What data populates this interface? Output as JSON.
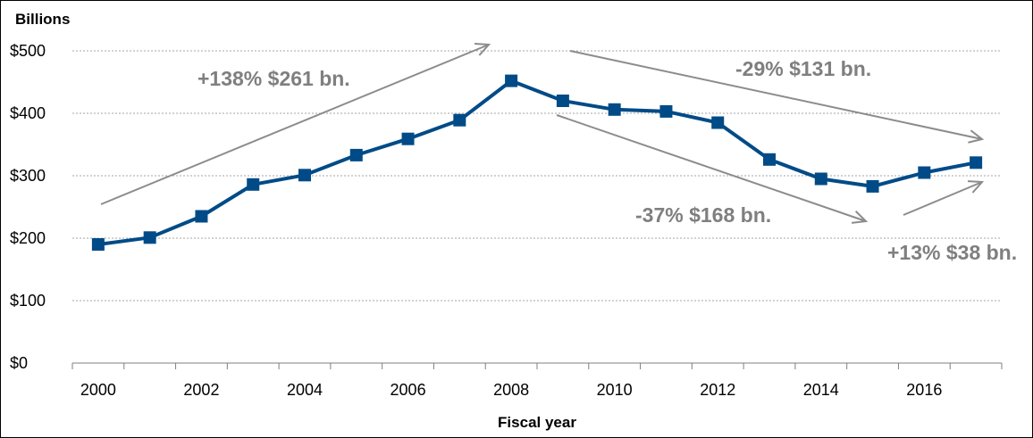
{
  "chart_data": {
    "type": "line",
    "title": "",
    "ylabel": "Billions",
    "xlabel": "Fiscal year",
    "ylim": [
      0,
      500
    ],
    "grid": true,
    "y_ticks": [
      0,
      100,
      200,
      300,
      400,
      500
    ],
    "y_tick_labels": [
      "$0",
      "$100",
      "$200",
      "$300",
      "$400",
      "$500"
    ],
    "x_tick_labels": [
      "2000",
      "2002",
      "2004",
      "2006",
      "2008",
      "2010",
      "2012",
      "2014",
      "2016"
    ],
    "x": [
      2000,
      2001,
      2002,
      2003,
      2004,
      2005,
      2006,
      2007,
      2008,
      2009,
      2010,
      2011,
      2012,
      2013,
      2014,
      2015,
      2016,
      2017
    ],
    "series": [
      {
        "name": "",
        "color": "#004b87",
        "values": [
          190,
          201,
          235,
          286,
          301,
          333,
          359,
          389,
          452,
          420,
          406,
          403,
          385,
          326,
          295,
          283,
          305,
          321
        ]
      }
    ],
    "annotations": [
      {
        "text": "+138% $261 bn.",
        "from_x": 2000,
        "to_x": 2008
      },
      {
        "text": "-29% $131 bn.",
        "from_x": 2009,
        "to_x": 2017
      },
      {
        "text": "-37% $168 bn.",
        "from_x": 2009,
        "to_x": 2015
      },
      {
        "text": "+13% $38 bn.",
        "from_x": 2016,
        "to_x": 2017
      }
    ]
  }
}
